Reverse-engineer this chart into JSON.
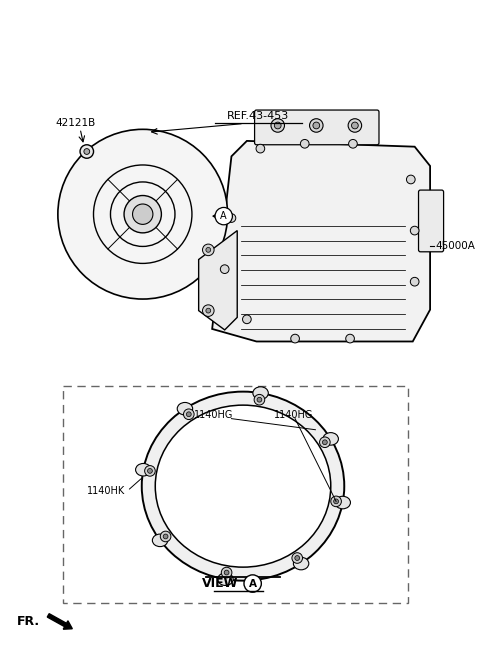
{
  "bg_color": "#ffffff",
  "label_42121B": "42121B",
  "label_ref": "REF.43-453",
  "label_45000A": "45000A",
  "label_1140HG1": "1140HG",
  "label_1140HG2": "1140HG",
  "label_1140HK": "1140HK",
  "label_view": "VIEW",
  "label_FR": "FR.",
  "line_color": "#000000",
  "dashed_color": "#666666",
  "fig_width": 4.8,
  "fig_height": 6.55,
  "dpi": 100
}
